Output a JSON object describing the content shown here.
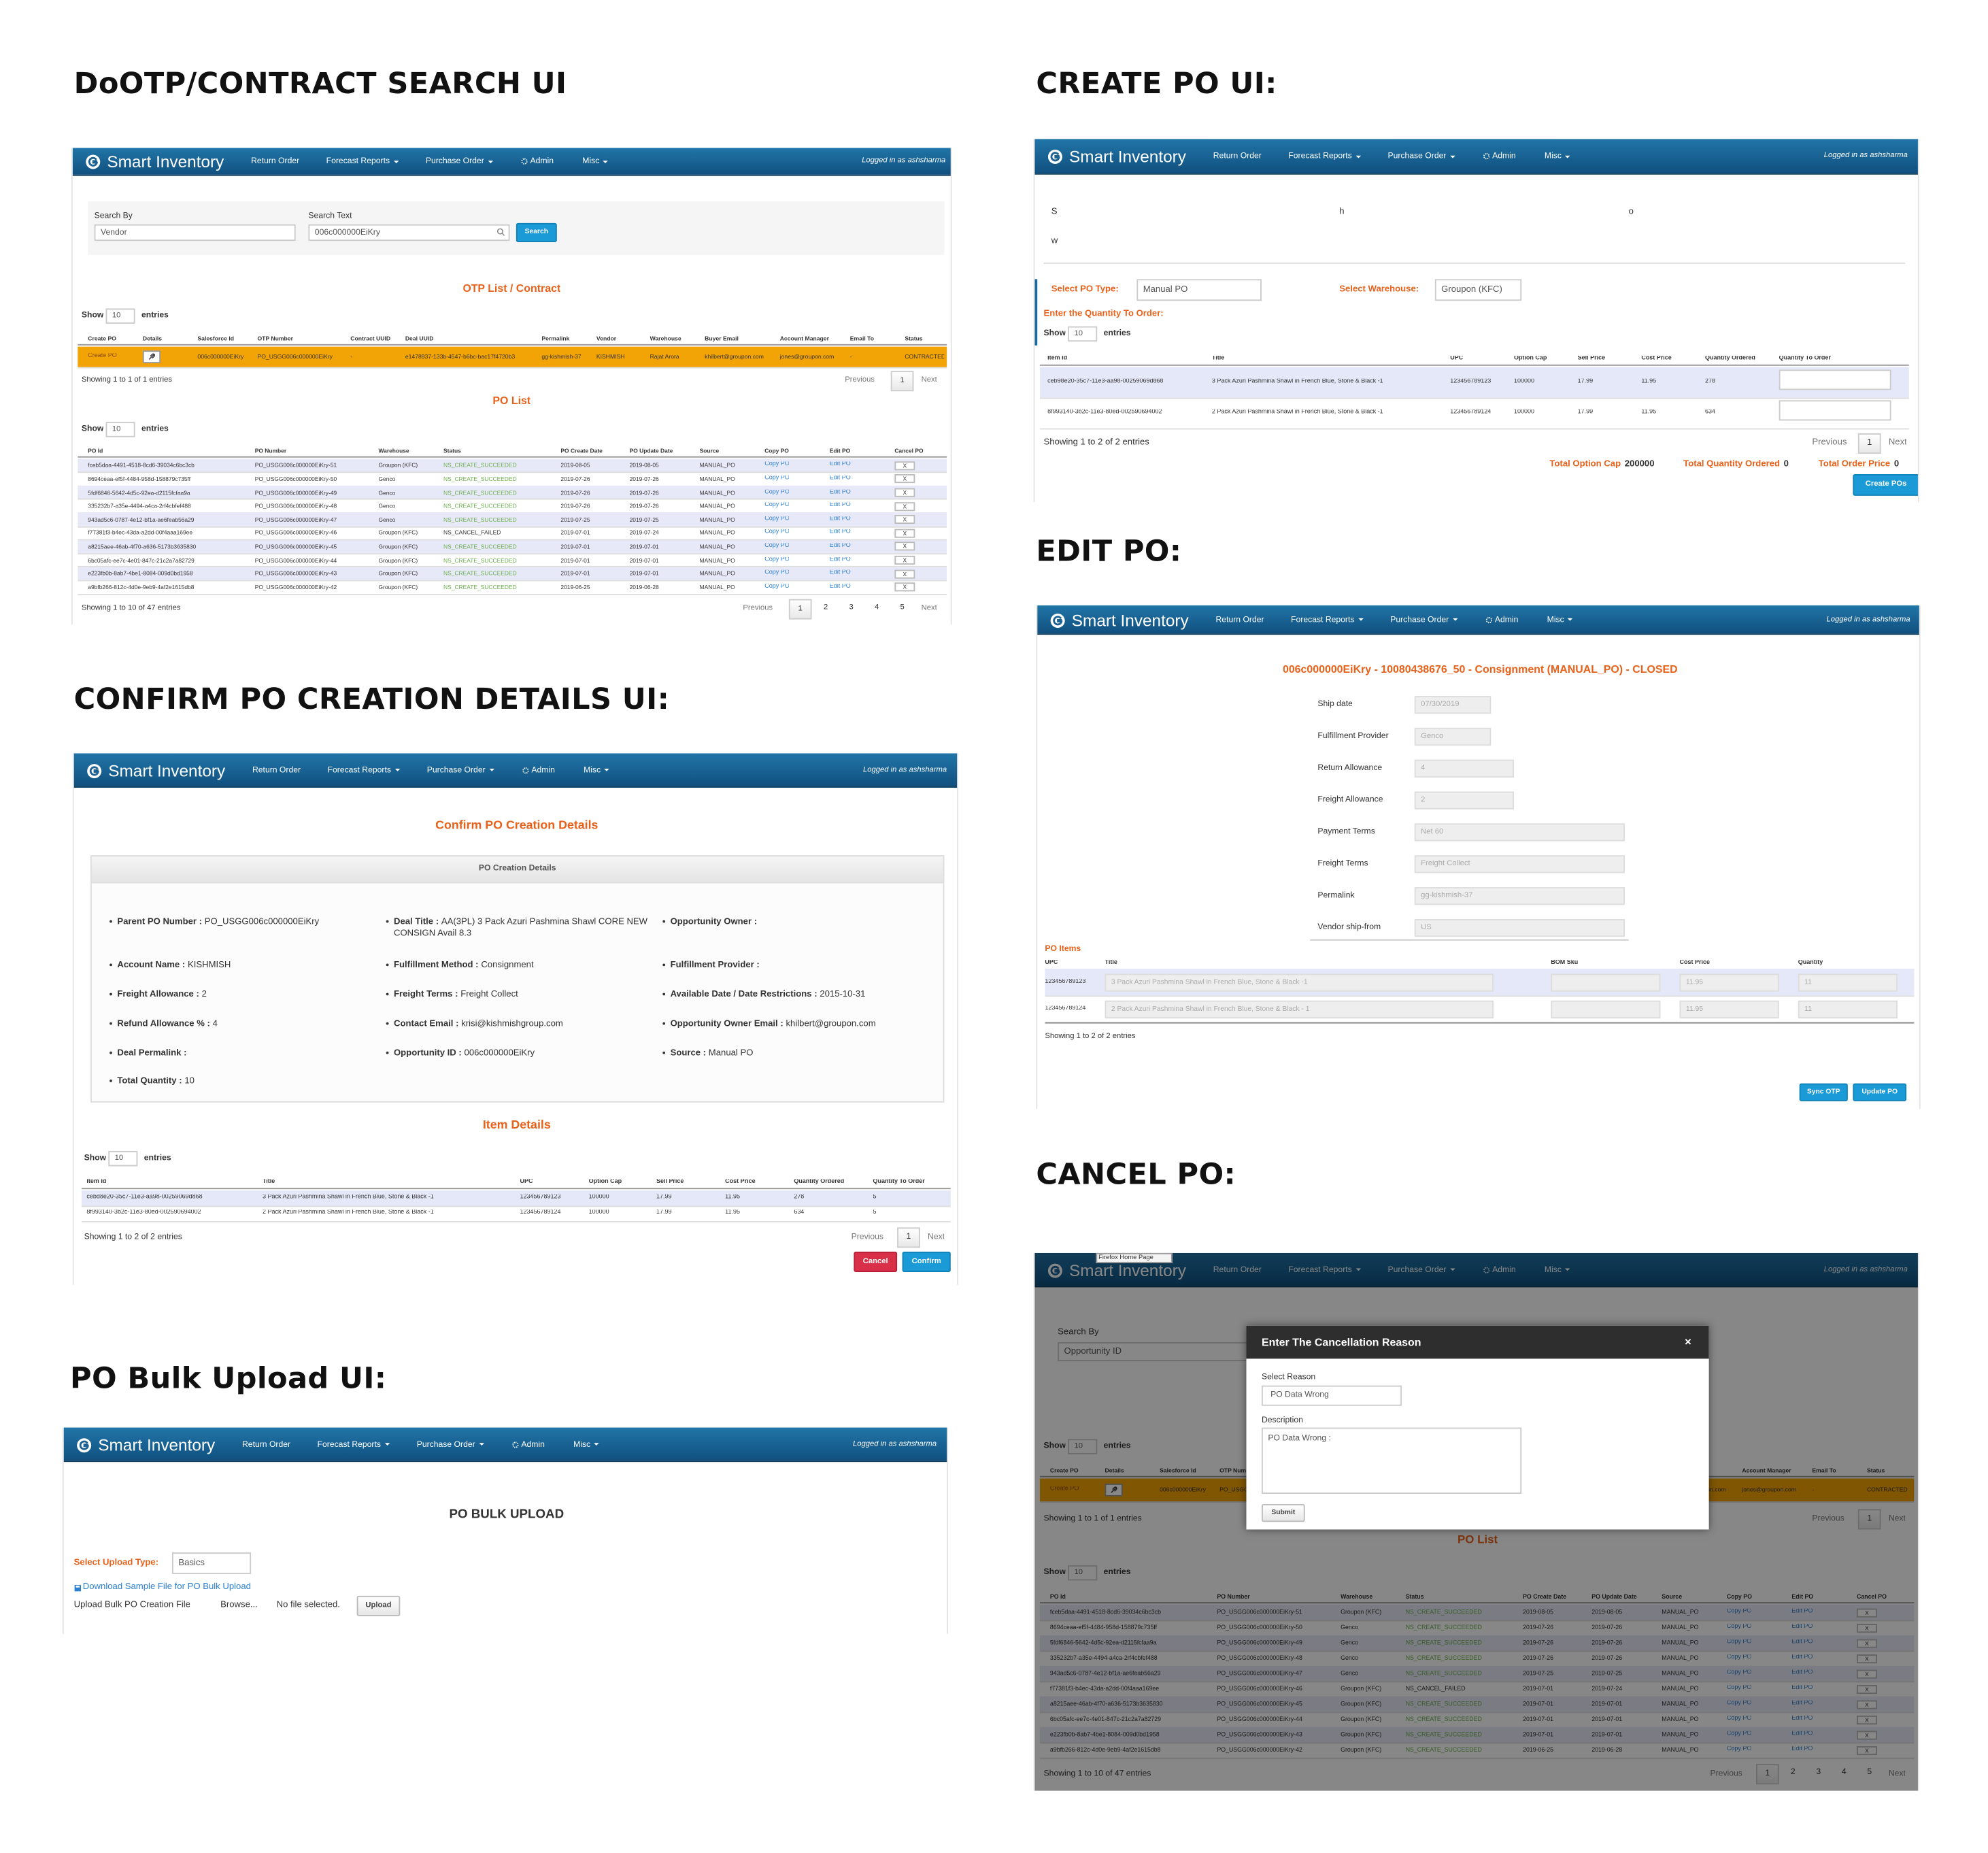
{
  "common": {
    "nav": {
      "brand": "Smart Inventory",
      "items": [
        {
          "label": "Return Order"
        },
        {
          "label": "Forecast Reports",
          "dropdown": true
        },
        {
          "label": "Purchase Order",
          "dropdown": true
        },
        {
          "label": "Admin",
          "icon": "gear"
        },
        {
          "label": "Misc",
          "dropdown": true
        }
      ],
      "user": "Logged in as ashsharma"
    },
    "show": "Show",
    "entries": "entries",
    "page_size": 10,
    "previous": "Previous",
    "next": "Next"
  },
  "contract_table": {
    "columns": [
      "Create PO",
      "Details",
      "Salesforce Id",
      "OTP Number",
      "Contract UUID",
      "Deal UUID",
      "Permalink",
      "Vendor",
      "Warehouse",
      "Buyer Email",
      "Account Manager",
      "Email To",
      "Status"
    ],
    "row": [
      "Create PO",
      null,
      "006c000000EiKry",
      "PO_USGG006c000000EiKry",
      "-",
      "e1478937-133b-4547-b6bc-bac17f4720b3",
      "gg-kishmish-37",
      "KISHMISH",
      "Rajat Arora",
      "khilbert@groupon.com",
      "jones@groupon.com",
      "-",
      "CONTRACTED"
    ]
  },
  "po_table": {
    "columns": [
      "PO Id",
      "PO Number",
      "Warehouse",
      "Status",
      "PO Create Date",
      "PO Update Date",
      "Source",
      "Copy PO",
      "Edit PO",
      "Cancel PO"
    ],
    "rows": [
      [
        "fceb5daa-4491-4518-8cd6-39034c6bc3cb",
        "PO_USGG006c000000EiKry-51",
        "Groupon (KFC)",
        "NS_CREATE_SUCCEEDED",
        "2019-08-05",
        "2019-08-05",
        "MANUAL_PO",
        "Copy PO",
        "Edit PO",
        "X"
      ],
      [
        "8694ceaa-ef5f-4484-958d-158879c735ff",
        "PO_USGG006c000000EiKry-50",
        "Genco",
        "NS_CREATE_SUCCEEDED",
        "2019-07-26",
        "2019-07-26",
        "MANUAL_PO",
        "Copy PO",
        "Edit PO",
        "X"
      ],
      [
        "5fdf6846-5642-4d5c-92ea-d2115fcfaa9a",
        "PO_USGG006c000000EiKry-49",
        "Genco",
        "NS_CREATE_SUCCEEDED",
        "2019-07-26",
        "2019-07-26",
        "MANUAL_PO",
        "Copy PO",
        "Edit PO",
        "X"
      ],
      [
        "335232b7-a35e-4494-a4ca-2rf4cbfef488",
        "PO_USGG006c000000EiKry-48",
        "Genco",
        "NS_CREATE_SUCCEEDED",
        "2019-07-26",
        "2019-07-26",
        "MANUAL_PO",
        "Copy PO",
        "Edit PO",
        "X"
      ],
      [
        "943ad5c6-0787-4e12-bf1a-ae6feab56a29",
        "PO_USGG006c000000EiKry-47",
        "Genco",
        "NS_CREATE_SUCCEEDED",
        "2019-07-25",
        "2019-07-25",
        "MANUAL_PO",
        "Copy PO",
        "Edit PO",
        "X"
      ],
      [
        "f77381f3-b4ec-43da-a2dd-00f4aaa169ee",
        "PO_USGG006c000000EiKry-46",
        "Groupon (KFC)",
        "NS_CANCEL_FAILED",
        "2019-07-01",
        "2019-07-24",
        "MANUAL_PO",
        "Copy PO",
        "Edit PO",
        "X"
      ],
      [
        "a8215aee-46ab-4f70-a636-5173b3635830",
        "PO_USGG006c000000EiKry-45",
        "Groupon (KFC)",
        "NS_CREATE_SUCCEEDED",
        "2019-07-01",
        "2019-07-01",
        "MANUAL_PO",
        "Copy PO",
        "Edit PO",
        "X"
      ],
      [
        "6bc05afc-ee7c-4e01-847c-21c2a7a82729",
        "PO_USGG006c000000EiKry-44",
        "Groupon (KFC)",
        "NS_CREATE_SUCCEEDED",
        "2019-07-01",
        "2019-07-01",
        "MANUAL_PO",
        "Copy PO",
        "Edit PO",
        "X"
      ],
      [
        "e223fb0b-8ab7-4be1-8084-009d0bd1958",
        "PO_USGG006c000000EiKry-43",
        "Groupon (KFC)",
        "NS_CREATE_SUCCEEDED",
        "2019-07-01",
        "2019-07-01",
        "MANUAL_PO",
        "Copy PO",
        "Edit PO",
        "X"
      ],
      [
        "a9bfb266-812c-4d0e-9eb9-4af2e1615db8",
        "PO_USGG006c000000EiKry-42",
        "Groupon (KFC)",
        "NS_CREATE_SUCCEEDED",
        "2019-06-25",
        "2019-06-28",
        "MANUAL_PO",
        "Copy PO",
        "Edit PO",
        "X"
      ]
    ]
  },
  "search_ui": {
    "heading": "DoOTP/CONTRACT SEARCH UI",
    "search_by_label": "Search By",
    "search_by": "Vendor",
    "search_text_label": "Search Text",
    "search_text": "006c000000EiKry",
    "search_button": "Search",
    "otp_list_title": "OTP List / Contract",
    "contract_info": "Showing 1 to 1 of 1 entries",
    "contract_pages": [
      1
    ],
    "po_list_title": "PO List",
    "po_info": "Showing 1 to 10 of 47 entries",
    "po_pages": [
      1,
      2,
      3,
      4,
      5
    ]
  },
  "confirm_ui": {
    "heading": "CONFIRM PO CREATION DETAILS UI:",
    "title": "Confirm PO Creation Details",
    "box_title": "PO Creation Details",
    "details": [
      [
        {
          "label": "Parent PO Number :",
          "value": "PO_USGG006c000000EiKry"
        },
        {
          "label": "Account Name :",
          "value": "KISHMISH"
        },
        {
          "label": "Freight Allowance :",
          "value": "2"
        },
        {
          "label": "Refund Allowance % :",
          "value": "4"
        },
        {
          "label": "Deal Permalink :"
        },
        {
          "label": "Total Quantity :",
          "value": "10"
        }
      ],
      [
        {
          "label": "Deal Title :",
          "value": "AA(3PL) 3 Pack Azuri Pashmina Shawl CORE NEW CONSIGN Avail 8.3"
        },
        {
          "label": "Fulfillment Method :",
          "value": "Consignment"
        },
        {
          "label": "Freight Terms :",
          "value": "Freight Collect"
        },
        {
          "label": "Contact Email :",
          "value": "krisi@kishmishgroup.com"
        },
        {
          "label": "Opportunity ID :",
          "value": "006c000000EiKry"
        }
      ],
      [
        {
          "label": "Opportunity Owner :"
        },
        {
          "label": "Fulfillment Provider :"
        },
        {
          "label": "Available Date / Date Restrictions :",
          "value": "2015-10-31"
        },
        {
          "label": "Opportunity Owner Email :",
          "value": "khilbert@groupon.com"
        },
        {
          "label": "Source :",
          "value": "Manual PO"
        }
      ]
    ],
    "item_title": "Item Details",
    "item_columns": [
      "Item Id",
      "Title",
      "UPC",
      "Option Cap",
      "Sell Price",
      "Cost Price",
      "Quantity Ordered",
      "Quantity To Order"
    ],
    "item_rows": [
      [
        "cebd8e20-35c7-11e3-aa98-00259069d868",
        "3 Pack Azuri Pashmina Shawl in French Blue, Stone & Black -1",
        "123456789123",
        100000,
        17.99,
        11.95,
        278,
        5
      ],
      [
        "8f993140-3b2c-11e3-80ed-002590694002",
        "2 Pack Azuri Pashmina Shawl in French Blue, Stone & Black -1",
        "123456789124",
        100000,
        17.99,
        11.95,
        634,
        5
      ]
    ],
    "info": "Showing 1 to 2 of 2 entries",
    "pages": [
      1
    ],
    "cancel_button": "Cancel",
    "confirm_button": "Confirm"
  },
  "bulk_ui": {
    "heading": "PO Bulk Upload UI:",
    "title": "PO BULK UPLOAD",
    "upload_type_label": "Select Upload Type:",
    "upload_type": "Basics",
    "download_link": "Download Sample File for PO Bulk Upload",
    "file_label": "Upload Bulk PO Creation File",
    "browse": "Browse...",
    "no_file": "No file selected.",
    "upload_button": "Upload"
  },
  "create_ui": {
    "heading": "CREATE PO UI:",
    "info": "Showing 1 to 2 of 2 entries",
    "po_type_label": "Select PO Type:",
    "po_type": "Manual PO",
    "warehouse_label": "Select Warehouse:",
    "warehouse": "Groupon (KFC)",
    "quantity_title": "Enter the Quantity To Order:",
    "columns": [
      "Item Id",
      "Title",
      "UPC",
      "Option Cap",
      "Sell Price",
      "Cost Price",
      "Quantity Ordered",
      "Quantity To Order"
    ],
    "rows": [
      [
        "ceb98e20-35c7-11e3-aa98-00259069d868",
        "3 Pack Azuri Pashmina Shawl in French Blue, Stone & Black -1",
        "123456789123",
        100000,
        17.99,
        11.95,
        278
      ],
      [
        "8f993140-3b2c-11e3-80ed-002590694002",
        "2 Pack Azuri Pashmina Shawl in French Blue, Stone & Black -1",
        "123456789124",
        100000,
        17.99,
        11.95,
        634
      ]
    ],
    "pages": [
      1
    ],
    "totals": [
      {
        "label": "Total Option Cap",
        "value": 200000
      },
      {
        "label": "Total Quantity Ordered",
        "value": 0
      },
      {
        "label": "Total Order Price",
        "value": 0
      }
    ],
    "button": "Create POs"
  },
  "edit_ui": {
    "heading": "EDIT PO:",
    "title": "006c000000EiKry - 10080438676_50 - Consignment (MANUAL_PO) - CLOSED",
    "fields": [
      {
        "label": "Ship date",
        "value": "07/30/2019"
      },
      {
        "label": "Fulfillment Provider",
        "value": "Genco"
      },
      {
        "label": "Return Allowance",
        "value": "4"
      },
      {
        "label": "Freight Allowance",
        "value": "2"
      },
      {
        "label": "Payment Terms",
        "value": "Net 60"
      },
      {
        "label": "Freight Terms",
        "value": "Freight Collect"
      },
      {
        "label": "Permalink",
        "value": "gg-kishmish-37"
      },
      {
        "label": "Vendor ship-from",
        "value": "US"
      }
    ],
    "items_title": "PO Items",
    "columns": [
      "UPC",
      "Title",
      "BOM Sku",
      "Cost Price",
      "Quantity"
    ],
    "rows": [
      [
        "123456789123",
        "3 Pack Azuri Pashmina Shawl in French Blue, Stone & Black -1",
        null,
        11.95,
        11
      ],
      [
        "123456789124",
        "2 Pack Azuri Pashmina Shawl in French Blue, Stone & Black - 1",
        null,
        11.95,
        11
      ]
    ],
    "info": "Showing 1 to 2 of 2 entries",
    "sync_button": "Sync OTP",
    "update_button": "Update PO"
  },
  "cancel_ui": {
    "heading": "CANCEL PO:",
    "tooltip": "Firefox Home Page",
    "search_by": "Opportunity ID",
    "modal": {
      "title": "Enter The Cancellation Reason",
      "close": "×",
      "reason_label": "Select Reason",
      "reason": "PO Data Wrong",
      "description_label": "Description",
      "description": "PO Data Wrong :",
      "submit": "Submit"
    }
  }
}
